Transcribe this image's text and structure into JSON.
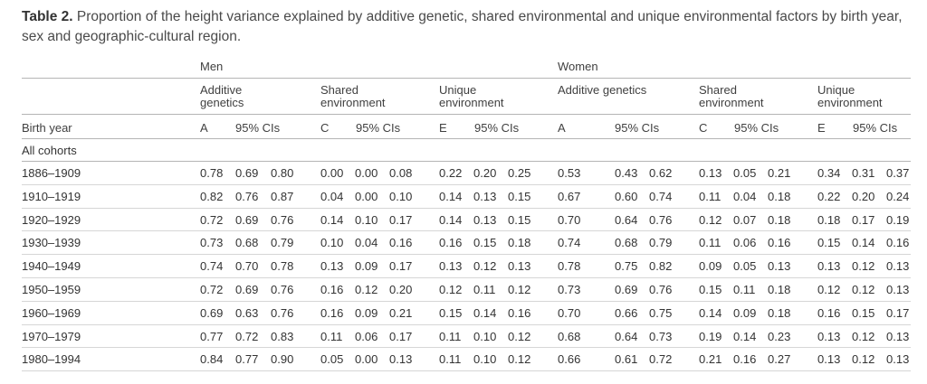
{
  "table": {
    "caption_label": "Table 2.",
    "caption_text": "Proportion of the height variance explained by additive genetic, shared environmental and unique environmental factors by birth year, sex and geographic-cultural region.",
    "groups": {
      "men": "Men",
      "women": "Women"
    },
    "components": {
      "men_a_line1": "Additive",
      "men_a_line2": "genetics",
      "men_c_line1": "Shared",
      "men_c_line2": "environment",
      "men_e_line1": "Unique",
      "men_e_line2": "environment",
      "women_a_line1": "Additive genetics",
      "women_c_line1": "Shared",
      "women_c_line2": "environment",
      "women_e_line1": "Unique",
      "women_e_line2": "environment"
    },
    "col_headers": {
      "birth_year": "Birth year",
      "a": "A",
      "c": "C",
      "e": "E",
      "ci": "95% CIs"
    },
    "section_label": "All cohorts",
    "rows": [
      {
        "year": "1886–1909",
        "v": [
          "0.78",
          "0.69",
          "0.80",
          "0.00",
          "0.00",
          "0.08",
          "0.22",
          "0.20",
          "0.25",
          "0.53",
          "0.43",
          "0.62",
          "0.13",
          "0.05",
          "0.21",
          "0.34",
          "0.31",
          "0.37"
        ]
      },
      {
        "year": "1910–1919",
        "v": [
          "0.82",
          "0.76",
          "0.87",
          "0.04",
          "0.00",
          "0.10",
          "0.14",
          "0.13",
          "0.15",
          "0.67",
          "0.60",
          "0.74",
          "0.11",
          "0.04",
          "0.18",
          "0.22",
          "0.20",
          "0.24"
        ]
      },
      {
        "year": "1920–1929",
        "v": [
          "0.72",
          "0.69",
          "0.76",
          "0.14",
          "0.10",
          "0.17",
          "0.14",
          "0.13",
          "0.15",
          "0.70",
          "0.64",
          "0.76",
          "0.12",
          "0.07",
          "0.18",
          "0.18",
          "0.17",
          "0.19"
        ]
      },
      {
        "year": "1930–1939",
        "v": [
          "0.73",
          "0.68",
          "0.79",
          "0.10",
          "0.04",
          "0.16",
          "0.16",
          "0.15",
          "0.18",
          "0.74",
          "0.68",
          "0.79",
          "0.11",
          "0.06",
          "0.16",
          "0.15",
          "0.14",
          "0.16"
        ]
      },
      {
        "year": "1940–1949",
        "v": [
          "0.74",
          "0.70",
          "0.78",
          "0.13",
          "0.09",
          "0.17",
          "0.13",
          "0.12",
          "0.13",
          "0.78",
          "0.75",
          "0.82",
          "0.09",
          "0.05",
          "0.13",
          "0.13",
          "0.12",
          "0.13"
        ]
      },
      {
        "year": "1950–1959",
        "v": [
          "0.72",
          "0.69",
          "0.76",
          "0.16",
          "0.12",
          "0.20",
          "0.12",
          "0.11",
          "0.12",
          "0.73",
          "0.69",
          "0.76",
          "0.15",
          "0.11",
          "0.18",
          "0.12",
          "0.12",
          "0.13"
        ]
      },
      {
        "year": "1960–1969",
        "v": [
          "0.69",
          "0.63",
          "0.76",
          "0.16",
          "0.09",
          "0.21",
          "0.15",
          "0.14",
          "0.16",
          "0.70",
          "0.66",
          "0.75",
          "0.14",
          "0.09",
          "0.18",
          "0.16",
          "0.15",
          "0.17"
        ]
      },
      {
        "year": "1970–1979",
        "v": [
          "0.77",
          "0.72",
          "0.83",
          "0.11",
          "0.06",
          "0.17",
          "0.11",
          "0.10",
          "0.12",
          "0.68",
          "0.64",
          "0.73",
          "0.19",
          "0.14",
          "0.23",
          "0.13",
          "0.12",
          "0.13"
        ]
      },
      {
        "year": "1980–1994",
        "v": [
          "0.84",
          "0.77",
          "0.90",
          "0.05",
          "0.00",
          "0.13",
          "0.11",
          "0.10",
          "0.12",
          "0.66",
          "0.61",
          "0.72",
          "0.21",
          "0.16",
          "0.27",
          "0.13",
          "0.12",
          "0.13"
        ]
      }
    ]
  }
}
